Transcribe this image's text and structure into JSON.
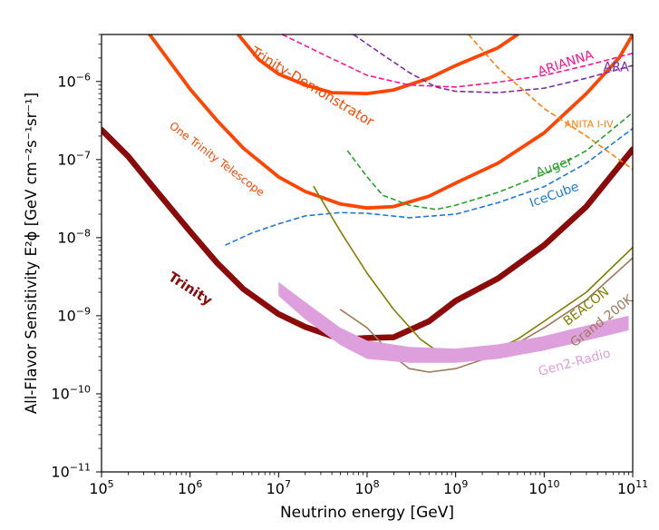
{
  "chart_data": {
    "type": "line",
    "xlabel": "Neutrino energy [GeV]",
    "ylabel": "All-Flavor Sensitivity E²ϕ [GeV cm⁻²s⁻¹sr⁻¹]",
    "xscale": "log",
    "yscale": "log",
    "xlim": [
      100000,
      100000000000
    ],
    "ylim": [
      1e-11,
      4e-06
    ],
    "x_ticks": [
      {
        "value": 100000.0,
        "base": "10",
        "exp": "5"
      },
      {
        "value": 1000000.0,
        "base": "10",
        "exp": "6"
      },
      {
        "value": 10000000.0,
        "base": "10",
        "exp": "7"
      },
      {
        "value": 100000000.0,
        "base": "10",
        "exp": "8"
      },
      {
        "value": 1000000000.0,
        "base": "10",
        "exp": "9"
      },
      {
        "value": 10000000000.0,
        "base": "10",
        "exp": "10"
      },
      {
        "value": 100000000000.0,
        "base": "10",
        "exp": "11"
      }
    ],
    "y_ticks": [
      {
        "value": 1e-11,
        "base": "10",
        "exp": "−11"
      },
      {
        "value": 1e-10,
        "base": "10",
        "exp": "−10"
      },
      {
        "value": 1e-09,
        "base": "10",
        "exp": "−9"
      },
      {
        "value": 1e-08,
        "base": "10",
        "exp": "−8"
      },
      {
        "value": 1e-07,
        "base": "10",
        "exp": "−7"
      },
      {
        "value": 1e-06,
        "base": "10",
        "exp": "−6"
      }
    ],
    "grid": false,
    "legend": "none (inline curve labels)",
    "series": [
      {
        "name": "Trinity",
        "color": "#8b0a0a",
        "style": "solid",
        "width": 6.5,
        "label": {
          "text": "Trinity",
          "x": 1000000.0,
          "y": 2.2e-09,
          "rotate": 33,
          "size": 15,
          "bold": true
        },
        "points": [
          [
            100000.0,
            2.4e-07
          ],
          [
            200000.0,
            1.1e-07
          ],
          [
            400000.0,
            4.2e-08
          ],
          [
            1000000.0,
            1.2e-08
          ],
          [
            2000000.0,
            4.8e-09
          ],
          [
            4000000.0,
            2.2e-09
          ],
          [
            10000000.0,
            1.05e-09
          ],
          [
            20000000.0,
            7.2e-10
          ],
          [
            40000000.0,
            5.5e-10
          ],
          [
            60000000.0,
            5e-10
          ],
          [
            100000000.0,
            5.2e-10
          ],
          [
            200000000.0,
            5.3e-10
          ],
          [
            500000000.0,
            8.5e-10
          ],
          [
            1000000000.0,
            1.55e-09
          ],
          [
            3000000000.0,
            3e-09
          ],
          [
            10000000000.0,
            8e-09
          ],
          [
            30000000000.0,
            2.5e-08
          ],
          [
            100000000000.0,
            1.35e-07
          ]
        ]
      },
      {
        "name": "Trinity-Demonstrator",
        "color": "#ff4500",
        "style": "solid",
        "width": 3.8,
        "label": {
          "text": "Trinity-Demonstrator",
          "x": 24000000.0,
          "y": 8.5e-07,
          "rotate": 31,
          "size": 15
        },
        "points": [
          [
            3500000.0,
            4e-06
          ],
          [
            6000000.0,
            1.9e-06
          ],
          [
            10000000.0,
            1.25e-06
          ],
          [
            20000000.0,
            9e-07
          ],
          [
            40000000.0,
            7.2e-07
          ],
          [
            100000000.0,
            7e-07
          ],
          [
            200000000.0,
            7.8e-07
          ],
          [
            500000000.0,
            1.1e-06
          ],
          [
            1000000000.0,
            1.6e-06
          ],
          [
            3000000000.0,
            2.7e-06
          ],
          [
            5000000000.0,
            4e-06
          ]
        ]
      },
      {
        "name": "One Trinity Telescope",
        "color": "#ff4500",
        "style": "solid",
        "width": 3.8,
        "label": {
          "text": "One Trinity Telescope",
          "x": 2000000.0,
          "y": 1e-07,
          "rotate": 37,
          "size": 12
        },
        "points": [
          [
            350000.0,
            4e-06
          ],
          [
            1000000.0,
            8e-07
          ],
          [
            2000000.0,
            3.2e-07
          ],
          [
            4000000.0,
            1.4e-07
          ],
          [
            10000000.0,
            6e-08
          ],
          [
            20000000.0,
            3.9e-08
          ],
          [
            50000000.0,
            2.7e-08
          ],
          [
            100000000.0,
            2.4e-08
          ],
          [
            200000000.0,
            2.5e-08
          ],
          [
            500000000.0,
            3.4e-08
          ],
          [
            1000000000.0,
            5e-08
          ],
          [
            3000000000.0,
            9e-08
          ],
          [
            10000000000.0,
            2.2e-07
          ],
          [
            30000000000.0,
            7e-07
          ],
          [
            70000000000.0,
            2e-06
          ],
          [
            100000000000.0,
            4e-06
          ]
        ]
      },
      {
        "name": "ARIANNA",
        "color": "#ff1493",
        "style": "dashed",
        "width": 1.6,
        "label": {
          "text": "ARIANNA",
          "x": 17500000000.0,
          "y": 1.7e-06,
          "rotate": -18,
          "size": 14
        },
        "points": [
          [
            11000000.0,
            4e-06
          ],
          [
            30000000.0,
            2.3e-06
          ],
          [
            100000000.0,
            1.2e-06
          ],
          [
            300000000.0,
            9e-07
          ],
          [
            1000000000.0,
            8.5e-07
          ],
          [
            3000000000.0,
            9.8e-07
          ],
          [
            10000000000.0,
            1.2e-06
          ],
          [
            30000000000.0,
            1.6e-06
          ],
          [
            100000000000.0,
            2.3e-06
          ]
        ]
      },
      {
        "name": "ARA",
        "color": "#7b2fa0",
        "style": "dashed",
        "width": 1.6,
        "label": {
          "text": "ARA",
          "x": 65000000000.0,
          "y": 1.5e-06,
          "rotate": 0,
          "size": 14
        },
        "points": [
          [
            70000000.0,
            4e-06
          ],
          [
            150000000.0,
            2.2e-06
          ],
          [
            300000000.0,
            1.3e-06
          ],
          [
            600000000.0,
            8.5e-07
          ],
          [
            1000000000.0,
            7.5e-07
          ],
          [
            3000000000.0,
            7.2e-07
          ],
          [
            10000000000.0,
            8.2e-07
          ],
          [
            30000000000.0,
            1.1e-06
          ],
          [
            100000000000.0,
            1.6e-06
          ]
        ]
      },
      {
        "name": "ANITA I-IV",
        "color": "#ff7f0e",
        "style": "dashed",
        "width": 1.6,
        "label": {
          "text": "ANITA I-IV",
          "x": 32000000000.0,
          "y": 2.8e-07,
          "rotate": 0,
          "size": 11
        },
        "points": [
          [
            1400000000.0,
            4e-06
          ],
          [
            3000000000.0,
            1.5e-06
          ],
          [
            10000000000.0,
            4.5e-07
          ],
          [
            30000000000.0,
            2e-07
          ],
          [
            100000000000.0,
            7.5e-08
          ]
        ]
      },
      {
        "name": "Auger",
        "color": "#2ca02c",
        "style": "dashed",
        "width": 1.6,
        "label": {
          "text": "Auger",
          "x": 13000000000.0,
          "y": 8e-08,
          "rotate": -20,
          "size": 14
        },
        "points": [
          [
            60000000.0,
            1.3e-07
          ],
          [
            100000000.0,
            6e-08
          ],
          [
            150000000.0,
            3.5e-08
          ],
          [
            300000000.0,
            2.6e-08
          ],
          [
            600000000.0,
            2.3e-08
          ],
          [
            1000000000.0,
            2.6e-08
          ],
          [
            3000000000.0,
            3.8e-08
          ],
          [
            10000000000.0,
            6.5e-08
          ],
          [
            30000000000.0,
            1.3e-07
          ],
          [
            100000000000.0,
            4e-07
          ]
        ]
      },
      {
        "name": "IceCube",
        "color": "#1e78d8",
        "style": "dashed",
        "width": 1.6,
        "label": {
          "text": "IceCube",
          "x": 13000000000.0,
          "y": 3.5e-08,
          "rotate": -20,
          "size": 14
        },
        "points": [
          [
            2500000.0,
            8e-09
          ],
          [
            5000000.0,
            1.15e-08
          ],
          [
            10000000.0,
            1.5e-08
          ],
          [
            20000000.0,
            1.9e-08
          ],
          [
            50000000.0,
            2.1e-08
          ],
          [
            100000000.0,
            2.05e-08
          ],
          [
            300000000.0,
            1.8e-08
          ],
          [
            1000000000.0,
            2e-08
          ],
          [
            3000000000.0,
            2.8e-08
          ],
          [
            10000000000.0,
            4.5e-08
          ],
          [
            30000000000.0,
            9e-08
          ],
          [
            100000000000.0,
            2.5e-07
          ]
        ]
      },
      {
        "name": "BEACON",
        "color": "#808000",
        "style": "solid",
        "width": 1.6,
        "label": {
          "text": "BEACON",
          "x": 30000000000.0,
          "y": 1.3e-09,
          "rotate": -38,
          "size": 14
        },
        "points": [
          [
            25000000.0,
            4.5e-08
          ],
          [
            50000000.0,
            1.2e-08
          ],
          [
            100000000.0,
            3.5e-09
          ],
          [
            200000000.0,
            1.2e-09
          ],
          [
            400000000.0,
            5e-10
          ],
          [
            700000000.0,
            3.2e-10
          ],
          [
            1000000000.0,
            2.9e-10
          ],
          [
            2000000000.0,
            3.1e-10
          ],
          [
            5000000000.0,
            5e-10
          ],
          [
            10000000000.0,
            8.5e-10
          ],
          [
            30000000000.0,
            2e-09
          ],
          [
            100000000000.0,
            7.5e-09
          ]
        ]
      },
      {
        "name": "Grand 200K",
        "color": "#a0785a",
        "style": "solid",
        "width": 1.6,
        "label": {
          "text": "Grand 200K",
          "x": 45000000000.0,
          "y": 8.5e-10,
          "rotate": -38,
          "size": 14
        },
        "points": [
          [
            50000000.0,
            1.2e-09
          ],
          [
            100000000.0,
            7e-10
          ],
          [
            200000000.0,
            3e-10
          ],
          [
            300000000.0,
            2.1e-10
          ],
          [
            500000000.0,
            1.9e-10
          ],
          [
            1000000000.0,
            2.1e-10
          ],
          [
            3000000000.0,
            3.2e-10
          ],
          [
            10000000000.0,
            7e-10
          ],
          [
            30000000000.0,
            1.6e-09
          ],
          [
            100000000000.0,
            5.5e-09
          ]
        ]
      },
      {
        "name": "Gen2-Radio",
        "color": "#dda0dd",
        "style": "band",
        "label": {
          "text": "Gen2-Radio",
          "x": 22000000000.0,
          "y": 2.5e-10,
          "rotate": -15,
          "size": 14
        },
        "upper": [
          [
            10000000.0,
            2.7e-09
          ],
          [
            20000000.0,
            1.5e-09
          ],
          [
            50000000.0,
            7e-10
          ],
          [
            100000000.0,
            4.8e-10
          ],
          [
            300000000.0,
            4e-10
          ],
          [
            1000000000.0,
            3.8e-10
          ],
          [
            3000000000.0,
            4.3e-10
          ],
          [
            10000000000.0,
            5.5e-10
          ],
          [
            30000000000.0,
            7.5e-10
          ],
          [
            90000000000.0,
            1e-09
          ]
        ],
        "lower": [
          [
            10000000.0,
            1.8e-09
          ],
          [
            20000000.0,
            9e-10
          ],
          [
            50000000.0,
            4.2e-10
          ],
          [
            100000000.0,
            2.8e-10
          ],
          [
            300000000.0,
            2.5e-10
          ],
          [
            1000000000.0,
            2.5e-10
          ],
          [
            3000000000.0,
            2.8e-10
          ],
          [
            10000000000.0,
            3.6e-10
          ],
          [
            30000000000.0,
            4.8e-10
          ],
          [
            90000000000.0,
            6.5e-10
          ]
        ]
      }
    ]
  }
}
